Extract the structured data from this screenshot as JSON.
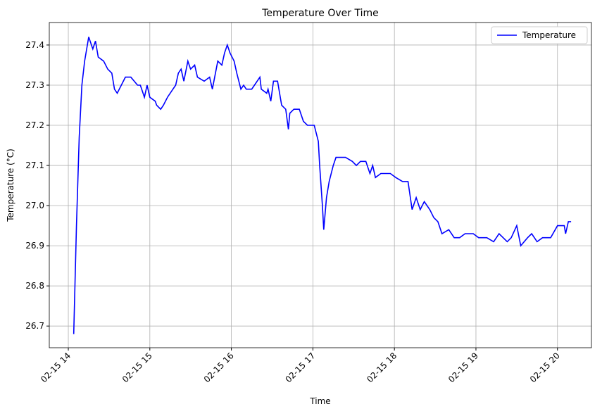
{
  "chart_data": {
    "type": "line",
    "title": "Temperature Over Time",
    "x_label": "Time",
    "y_label": "Temperature (°C)",
    "x": [
      "02-15 14:04",
      "02-15 14:06",
      "02-15 14:08",
      "02-15 14:10",
      "02-15 14:12",
      "02-15 14:15",
      "02-15 14:18",
      "02-15 14:20",
      "02-15 14:22",
      "02-15 14:26",
      "02-15 14:29",
      "02-15 14:32",
      "02-15 14:34",
      "02-15 14:36",
      "02-15 14:39",
      "02-15 14:42",
      "02-15 14:46",
      "02-15 14:51",
      "02-15 14:53",
      "02-15 14:56",
      "02-15 14:58",
      "02-15 15:00",
      "02-15 15:04",
      "02-15 15:05",
      "02-15 15:08",
      "02-15 15:10",
      "02-15 15:13",
      "02-15 15:17",
      "02-15 15:19",
      "02-15 15:21",
      "02-15 15:23",
      "02-15 15:25",
      "02-15 15:28",
      "02-15 15:30",
      "02-15 15:33",
      "02-15 15:35",
      "02-15 15:40",
      "02-15 15:44",
      "02-15 15:46",
      "02-15 15:50",
      "02-15 15:53",
      "02-15 15:55",
      "02-15 15:57",
      "02-15 15:59",
      "02-15 16:02",
      "02-15 16:04",
      "02-15 16:07",
      "02-15 16:09",
      "02-15 16:11",
      "02-15 16:15",
      "02-15 16:17",
      "02-15 16:21",
      "02-15 16:22",
      "02-15 16:26",
      "02-15 16:27",
      "02-15 16:29",
      "02-15 16:31",
      "02-15 16:34",
      "02-15 16:37",
      "02-15 16:40",
      "02-15 16:42",
      "02-15 16:43",
      "02-15 16:46",
      "02-15 16:50",
      "02-15 16:53",
      "02-15 16:56",
      "02-15 16:59",
      "02-15 17:01",
      "02-15 17:04",
      "02-15 17:05",
      "02-15 17:07",
      "02-15 17:08",
      "02-15 17:10",
      "02-15 17:12",
      "02-15 17:15",
      "02-15 17:17",
      "02-15 17:20",
      "02-15 17:24",
      "02-15 17:29",
      "02-15 17:32",
      "02-15 17:35",
      "02-15 17:39",
      "02-15 17:42",
      "02-15 17:44",
      "02-15 17:46",
      "02-15 17:50",
      "02-15 17:57",
      "02-15 18:01",
      "02-15 18:06",
      "02-15 18:10",
      "02-15 18:13",
      "02-15 18:16",
      "02-15 18:19",
      "02-15 18:22",
      "02-15 18:26",
      "02-15 18:29",
      "02-15 18:32",
      "02-15 18:35",
      "02-15 18:40",
      "02-15 18:44",
      "02-15 18:48",
      "02-15 18:52",
      "02-15 18:58",
      "02-15 19:02",
      "02-15 19:08",
      "02-15 19:13",
      "02-15 19:17",
      "02-15 19:20",
      "02-15 19:23",
      "02-15 19:26",
      "02-15 19:30",
      "02-15 19:33",
      "02-15 19:38",
      "02-15 19:41",
      "02-15 19:45",
      "02-15 19:49",
      "02-15 19:55",
      "02-15 20:00",
      "02-15 20:05",
      "02-15 20:06",
      "02-15 20:08",
      "02-15 20:10"
    ],
    "series": [
      {
        "name": "Temperature",
        "color": "#0000ff",
        "values": [
          26.68,
          26.95,
          27.17,
          27.3,
          27.36,
          27.42,
          27.39,
          27.41,
          27.37,
          27.36,
          27.34,
          27.33,
          27.29,
          27.28,
          27.3,
          27.32,
          27.32,
          27.3,
          27.3,
          27.27,
          27.3,
          27.27,
          27.26,
          27.25,
          27.24,
          27.25,
          27.27,
          27.29,
          27.3,
          27.33,
          27.34,
          27.31,
          27.36,
          27.34,
          27.35,
          27.32,
          27.31,
          27.32,
          27.29,
          27.36,
          27.35,
          27.38,
          27.4,
          27.38,
          27.36,
          27.33,
          27.29,
          27.3,
          27.29,
          27.29,
          27.3,
          27.32,
          27.29,
          27.28,
          27.29,
          27.26,
          27.31,
          27.31,
          27.25,
          27.24,
          27.19,
          27.23,
          27.24,
          27.24,
          27.21,
          27.2,
          27.2,
          27.2,
          27.16,
          27.1,
          27.0,
          26.94,
          27.02,
          27.06,
          27.1,
          27.12,
          27.12,
          27.12,
          27.11,
          27.1,
          27.11,
          27.11,
          27.08,
          27.1,
          27.07,
          27.08,
          27.08,
          27.07,
          27.06,
          27.06,
          26.99,
          27.02,
          26.99,
          27.01,
          26.99,
          26.97,
          26.96,
          26.93,
          26.94,
          26.92,
          26.92,
          26.93,
          26.93,
          26.92,
          26.92,
          26.91,
          26.93,
          26.92,
          26.91,
          26.92,
          26.95,
          26.9,
          26.92,
          26.93,
          26.91,
          26.92,
          26.92,
          26.95,
          26.95,
          26.93,
          26.96,
          26.96
        ]
      }
    ],
    "xlim": [
      "02-15 13:46",
      "02-15 20:25"
    ],
    "xticks": [
      {
        "value": "02-15 14:00",
        "label": "02-15 14"
      },
      {
        "value": "02-15 15:00",
        "label": "02-15 15"
      },
      {
        "value": "02-15 16:00",
        "label": "02-15 16"
      },
      {
        "value": "02-15 17:00",
        "label": "02-15 17"
      },
      {
        "value": "02-15 18:00",
        "label": "02-15 18"
      },
      {
        "value": "02-15 19:00",
        "label": "02-15 19"
      },
      {
        "value": "02-15 20:00",
        "label": "02-15 20"
      }
    ],
    "ylim": [
      26.646,
      27.456
    ],
    "yticks": [
      26.7,
      26.8,
      26.9,
      {
        "value": 27,
        "label": "27.0"
      },
      27.1,
      27.2,
      27.3,
      27.4
    ],
    "grid": true,
    "legend": "upper right"
  }
}
